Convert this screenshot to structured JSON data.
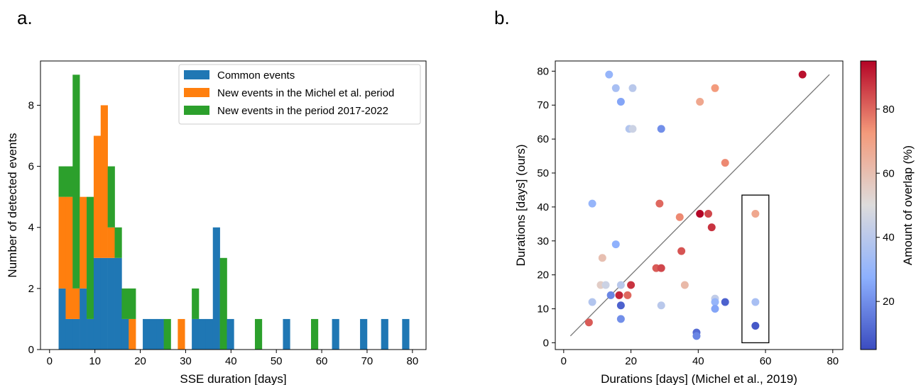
{
  "panels": {
    "a": "a.",
    "b": "b."
  },
  "chart_data": [
    {
      "type": "bar",
      "stacked": true,
      "title": "",
      "xlabel": "SSE duration [days]",
      "ylabel": "Number of detected events",
      "xlim": [
        -2,
        83
      ],
      "ylim": [
        0,
        9.45
      ],
      "xticks": [
        0,
        10,
        20,
        30,
        40,
        50,
        60,
        70,
        80
      ],
      "yticks": [
        0,
        2,
        4,
        6,
        8
      ],
      "legend_position": "upper right",
      "bin_width": 1.545,
      "x": [
        2,
        3.55,
        5.09,
        6.64,
        8.18,
        9.73,
        11.27,
        12.82,
        14.36,
        15.91,
        17.45,
        19,
        20.55,
        22.09,
        23.64,
        25.18,
        26.73,
        28.27,
        29.82,
        31.36,
        32.91,
        34.45,
        36,
        37.55,
        39.09,
        40.64,
        42.18,
        43.73,
        45.27,
        46.82,
        48.36,
        49.91,
        51.45,
        53,
        54.55,
        56.09,
        57.64,
        59.18,
        60.73,
        62.27,
        63.82,
        65.36,
        66.91,
        68.45,
        70,
        71.55,
        73.09,
        74.64,
        76.18,
        77.73
      ],
      "series": [
        {
          "name": "Common events",
          "color": "#1f77b4",
          "values": [
            2,
            1,
            1,
            2,
            1,
            3,
            3,
            3,
            3,
            1,
            0,
            0,
            1,
            1,
            1,
            0,
            0,
            0,
            0,
            1,
            1,
            1,
            4,
            0,
            1,
            0,
            0,
            0,
            0,
            0,
            0,
            0,
            1,
            0,
            0,
            0,
            0,
            0,
            0,
            1,
            0,
            0,
            0,
            1,
            0,
            0,
            1,
            0,
            0,
            1
          ]
        },
        {
          "name": "New events in the Michel et al. period",
          "color": "#ff7f0e",
          "values": [
            3,
            4,
            1,
            3,
            0,
            4,
            5,
            1,
            0,
            0,
            1,
            0,
            0,
            0,
            0,
            0,
            0,
            1,
            0,
            0,
            0,
            0,
            0,
            0,
            0,
            0,
            0,
            0,
            0,
            0,
            0,
            0,
            0,
            0,
            0,
            0,
            0,
            0,
            0,
            0,
            0,
            0,
            0,
            0,
            0,
            0,
            0,
            0,
            0,
            0
          ]
        },
        {
          "name": "New events in the period 2017-2022",
          "color": "#2ca02c",
          "values": [
            1,
            1,
            7,
            0,
            4,
            0,
            0,
            2,
            1,
            1,
            1,
            0,
            0,
            0,
            0,
            1,
            0,
            0,
            0,
            1,
            0,
            0,
            0,
            3,
            0,
            0,
            0,
            0,
            1,
            0,
            0,
            0,
            0,
            0,
            0,
            0,
            1,
            0,
            0,
            0,
            0,
            0,
            0,
            0,
            0,
            0,
            0,
            0,
            0,
            0
          ]
        }
      ]
    },
    {
      "type": "scatter",
      "title": "",
      "xlabel": "Durations [days] (Michel et al., 2019)",
      "ylabel": "Durations [days] (ours)",
      "xlim": [
        -2.5,
        83
      ],
      "ylim": [
        -2,
        83
      ],
      "xticks": [
        0,
        20,
        40,
        60,
        80
      ],
      "yticks": [
        0,
        10,
        20,
        30,
        40,
        50,
        60,
        70,
        80
      ],
      "identity_line": [
        [
          2,
          2
        ],
        [
          79,
          79
        ]
      ],
      "highlight_box": {
        "x": [
          53,
          61
        ],
        "y": [
          0,
          43.5
        ]
      },
      "colorbar": {
        "label": "Amount of overlap (%)",
        "ticks": [
          20,
          40,
          60,
          80
        ],
        "range": [
          5,
          95
        ],
        "colormap": "coolwarm"
      },
      "points": [
        {
          "x": 13.5,
          "y": 79,
          "c": 30
        },
        {
          "x": 15.5,
          "y": 75,
          "c": 35
        },
        {
          "x": 20.5,
          "y": 75,
          "c": 40
        },
        {
          "x": 17,
          "y": 71,
          "c": 25
        },
        {
          "x": 19.5,
          "y": 63,
          "c": 38
        },
        {
          "x": 20.5,
          "y": 63,
          "c": 45
        },
        {
          "x": 29,
          "y": 63,
          "c": 20
        },
        {
          "x": 8.5,
          "y": 41,
          "c": 30
        },
        {
          "x": 15.5,
          "y": 29,
          "c": 28
        },
        {
          "x": 11.5,
          "y": 25,
          "c": 60
        },
        {
          "x": 11,
          "y": 17,
          "c": 55
        },
        {
          "x": 12.5,
          "y": 17,
          "c": 45
        },
        {
          "x": 17,
          "y": 17,
          "c": 40
        },
        {
          "x": 8.5,
          "y": 12,
          "c": 38
        },
        {
          "x": 14,
          "y": 14,
          "c": 18
        },
        {
          "x": 16.5,
          "y": 14,
          "c": 90
        },
        {
          "x": 19,
          "y": 14,
          "c": 80
        },
        {
          "x": 20,
          "y": 17,
          "c": 88
        },
        {
          "x": 17,
          "y": 11,
          "c": 10
        },
        {
          "x": 17,
          "y": 7,
          "c": 20
        },
        {
          "x": 7.5,
          "y": 6,
          "c": 82
        },
        {
          "x": 29,
          "y": 11,
          "c": 40
        },
        {
          "x": 28.5,
          "y": 41,
          "c": 80
        },
        {
          "x": 27.5,
          "y": 22,
          "c": 82
        },
        {
          "x": 29,
          "y": 22,
          "c": 85
        },
        {
          "x": 35,
          "y": 27,
          "c": 83
        },
        {
          "x": 36,
          "y": 17,
          "c": 62
        },
        {
          "x": 34.5,
          "y": 37,
          "c": 75
        },
        {
          "x": 40.5,
          "y": 38,
          "c": 95
        },
        {
          "x": 43,
          "y": 38,
          "c": 85
        },
        {
          "x": 44,
          "y": 34,
          "c": 88
        },
        {
          "x": 40.5,
          "y": 71,
          "c": 68
        },
        {
          "x": 45,
          "y": 75,
          "c": 72
        },
        {
          "x": 48,
          "y": 53,
          "c": 75
        },
        {
          "x": 45,
          "y": 13,
          "c": 42
        },
        {
          "x": 45,
          "y": 12,
          "c": 30
        },
        {
          "x": 45,
          "y": 10,
          "c": 25
        },
        {
          "x": 48,
          "y": 12,
          "c": 10
        },
        {
          "x": 39.5,
          "y": 3,
          "c": 12
        },
        {
          "x": 39.5,
          "y": 2,
          "c": 18
        },
        {
          "x": 57,
          "y": 38,
          "c": 68
        },
        {
          "x": 57,
          "y": 12,
          "c": 35
        },
        {
          "x": 57,
          "y": 5,
          "c": 8
        },
        {
          "x": 71,
          "y": 79,
          "c": 93
        }
      ]
    }
  ]
}
